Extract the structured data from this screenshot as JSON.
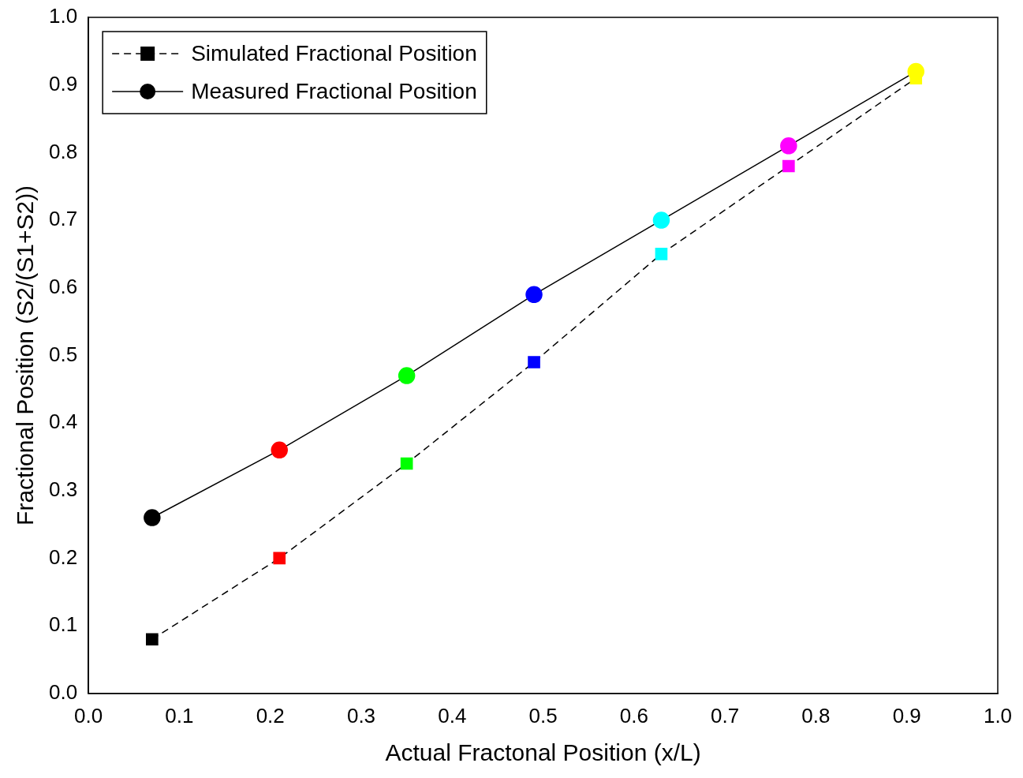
{
  "chart_data": {
    "type": "line",
    "x_label": "Actual Fractonal Position (x/L)",
    "y_label": "Fractional Position (S2/(S1+S2))",
    "x": [
      0.07,
      0.21,
      0.35,
      0.49,
      0.63,
      0.77,
      0.91
    ],
    "series": [
      {
        "name": "Simulated Fractional Position",
        "color": "#000000",
        "colors": [
          "#000000",
          "#ff0000",
          "#00ff00",
          "#0000ff",
          "#00ffff",
          "#ff00ff",
          "#ffff00"
        ],
        "marker": "square",
        "line_style": "dashed",
        "values": [
          0.08,
          0.2,
          0.34,
          0.49,
          0.65,
          0.78,
          0.91
        ]
      },
      {
        "name": "Measured Fractional Position",
        "color": "#000000",
        "colors": [
          "#000000",
          "#ff0000",
          "#00ff00",
          "#0000ff",
          "#00ffff",
          "#ff00ff",
          "#ffff00"
        ],
        "marker": "circle",
        "line_style": "solid",
        "values": [
          0.26,
          0.36,
          0.47,
          0.59,
          0.7,
          0.81,
          0.92
        ]
      }
    ],
    "xlim": [
      0,
      1
    ],
    "xticks": [
      {
        "value": 0,
        "label": "0.0"
      },
      0.1,
      0.2,
      0.3,
      0.4,
      0.5,
      0.6,
      0.7,
      0.8,
      0.9,
      {
        "value": 1,
        "label": "1.0"
      }
    ],
    "ylim": [
      0,
      1
    ],
    "yticks": [
      {
        "value": 0,
        "label": "0.0"
      },
      0.1,
      0.2,
      0.3,
      0.4,
      0.5,
      0.6,
      0.7,
      0.8,
      0.9,
      {
        "value": 1,
        "label": "1.0"
      }
    ],
    "grid": false,
    "legend": "top-left"
  }
}
